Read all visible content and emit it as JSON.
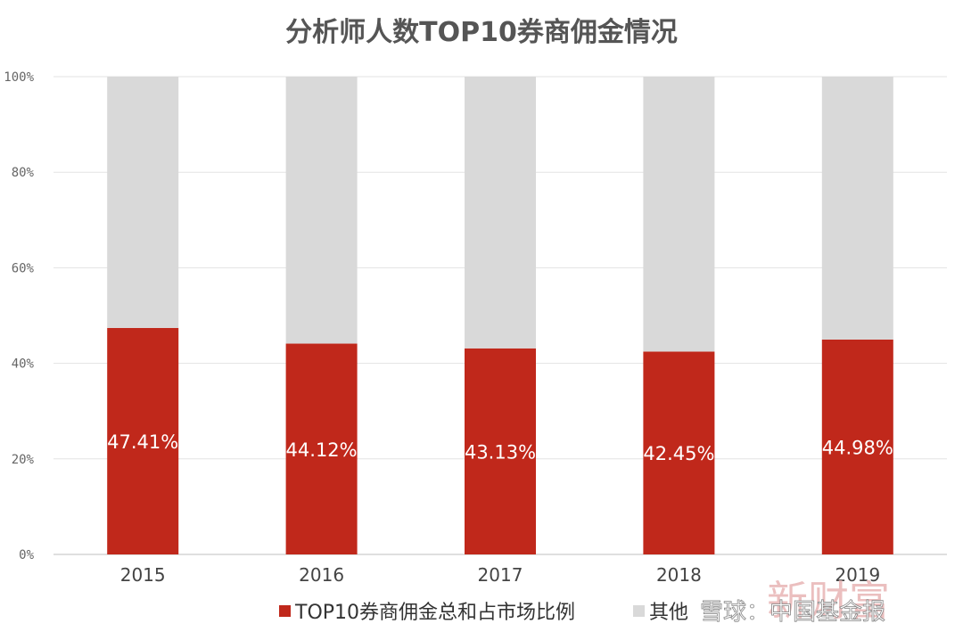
{
  "chart_data": {
    "type": "bar",
    "stacked": true,
    "title": "分析师人数TOP10券商佣金情况",
    "categories": [
      "2015",
      "2016",
      "2017",
      "2018",
      "2019"
    ],
    "series": [
      {
        "name": "TOP10券商佣金总和占市场比例",
        "values": [
          47.41,
          44.12,
          43.13,
          42.45,
          44.98
        ],
        "color": "#c0281b"
      },
      {
        "name": "其他",
        "values": [
          52.59,
          55.88,
          56.87,
          57.55,
          55.02
        ],
        "color": "#d9d9d9"
      }
    ],
    "data_labels": [
      "47.41%",
      "44.12%",
      "43.13%",
      "42.45%",
      "44.98%"
    ],
    "y_ticks": [
      "0%",
      "20%",
      "40%",
      "60%",
      "80%",
      "100%"
    ],
    "ylim": [
      0,
      100
    ],
    "grid": true,
    "legend_position": "bottom"
  },
  "watermark": {
    "text": "雪球：中国基金报",
    "stamp": "新财富"
  }
}
